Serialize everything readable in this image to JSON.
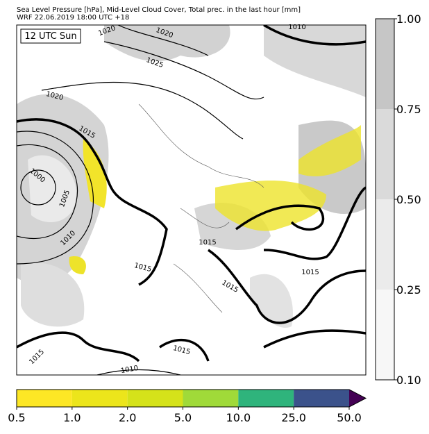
{
  "header": {
    "line1": "Sea Level Pressure [hPa], Mid-Level Cloud Cover, Total prec. in the last hour [mm]",
    "line2": "WRF 22.06.2019 18:00 UTC +18"
  },
  "map": {
    "time_label": "12 UTC Sun",
    "isobar_labels": [
      "1020",
      "1020",
      "1025",
      "1020",
      "1015",
      "1000",
      "1005",
      "1010",
      "1015",
      "1015",
      "1015",
      "1015",
      "1015",
      "1010",
      "1015",
      "1010"
    ]
  },
  "cloud_colorbar": {
    "ticks": [
      "0.10",
      "0.25",
      "0.50",
      "0.75",
      "1.00"
    ],
    "colors": [
      "#f7f7f7",
      "#ebebeb",
      "#dadada",
      "#c6c6c6"
    ]
  },
  "precip_colorbar": {
    "ticks": [
      "0.5",
      "1.0",
      "2.0",
      "5.0",
      "10.0",
      "25.0",
      "50.0"
    ],
    "colors": [
      "#fde725",
      "#ece51b",
      "#d5e21a",
      "#a0da39",
      "#2fb47c",
      "#3b528b"
    ],
    "extend_color": "#440154"
  }
}
